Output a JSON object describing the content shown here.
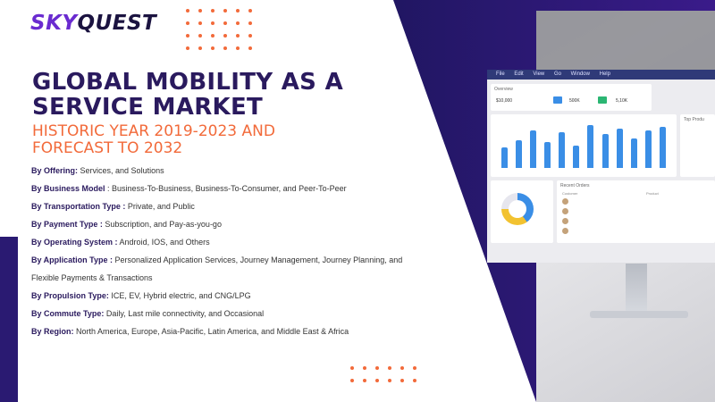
{
  "brand": {
    "logo_part1": "SKY",
    "logo_part2": "QUEST"
  },
  "title": "GLOBAL MOBILITY AS A SERVICE MARKET",
  "subtitle": "HISTORIC YEAR 2019-2023 AND FORECAST TO 2032",
  "colors": {
    "purple_dark": "#2a1a5e",
    "purple_brand": "#6a2bd0",
    "accent_orange": "#f26a3a",
    "chart_blue": "#3a8ee6"
  },
  "segments": [
    {
      "label": "By Offering:",
      "value": "Services, and Solutions"
    },
    {
      "label": "By Business Model",
      "value": ": Business-To-Business, Business-To-Consumer, and Peer-To-Peer"
    },
    {
      "label": "By Transportation Type :",
      "value": "Private, and Public"
    },
    {
      "label": "By Payment Type :",
      "value": "Subscription, and Pay-as-you-go"
    },
    {
      "label": "By Operating System :",
      "value": "Android, IOS, and Others"
    },
    {
      "label": "By Application Type :",
      "value": "Personalized Application Services, Journey Management, Journey Planning, and"
    },
    {
      "label": "",
      "value": "Flexible Payments & Transactions"
    },
    {
      "label": "By Propulsion Type:",
      "value": "ICE, EV, Hybrid electric, and CNG/LPG"
    },
    {
      "label": "By Commute Type:",
      "value": "Daily, Last mile connectivity, and Occasional"
    },
    {
      "label": "By Region:",
      "value": "North America, Europe, Asia-Pacific, Latin America, and Middle East & Africa"
    }
  ],
  "monitor": {
    "menu": [
      "File",
      "Edit",
      "View",
      "Go",
      "Window",
      "Help"
    ],
    "overview_label": "Overview",
    "stats": [
      "$10,000",
      "500K",
      "5,10K"
    ],
    "recent_orders_label": "Recent Orders",
    "customer_label": "Customer",
    "product_label": "Product",
    "top_products_label": "Top Produ",
    "bar_values": [
      22,
      30,
      40,
      28,
      38,
      24,
      46,
      36,
      42,
      32,
      40,
      44
    ]
  }
}
